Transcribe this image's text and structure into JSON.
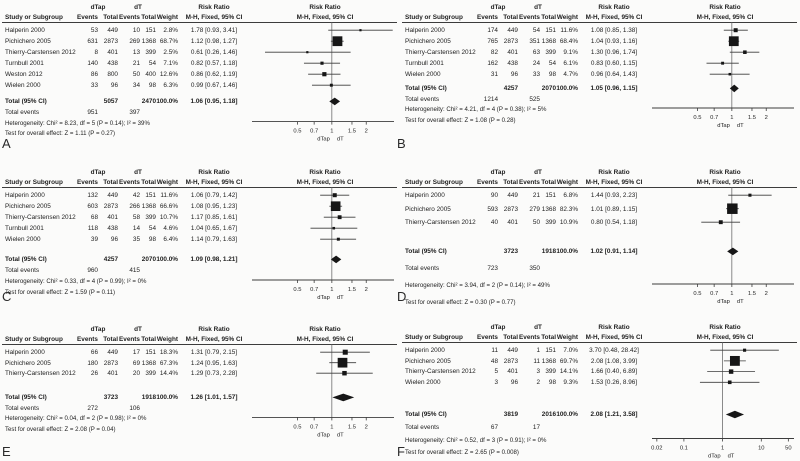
{
  "headers": {
    "group1": "dTap",
    "group2": "dT",
    "risk_ratio": "Risk Ratio",
    "study": "Study or Subgroup",
    "events": "Events",
    "total": "Total",
    "weight": "Weight",
    "mh": "M-H, Fixed, 95% CI",
    "total_label": "Total (95% CI)",
    "total_events_label": "Total events"
  },
  "chart_data": [
    {
      "type": "forest",
      "panel": "A",
      "effect_measure": "Risk Ratio",
      "method": "M-H, Fixed, 95% CI",
      "groups": [
        "dTap",
        "dT"
      ],
      "studies": [
        {
          "name": "Halperin  2000",
          "events1": 53,
          "total1": 449,
          "events2": 10,
          "total2": 151,
          "weight": "2.8%",
          "weight_pct": 2.8,
          "rr": 1.78,
          "lo": 0.93,
          "hi": 3.41,
          "ci": "1.78 [0.93, 3.41]"
        },
        {
          "name": "Pichichero 2005",
          "events1": 631,
          "total1": 2873,
          "events2": 269,
          "total2": 1368,
          "weight": "68.7%",
          "weight_pct": 68.7,
          "rr": 1.12,
          "lo": 0.98,
          "hi": 1.27,
          "ci": "1.12 [0.98, 1.27]"
        },
        {
          "name": "Thierry-Carstensen 2012",
          "events1": 8,
          "total1": 401,
          "events2": 13,
          "total2": 399,
          "weight": "2.5%",
          "weight_pct": 2.5,
          "rr": 0.61,
          "lo": 0.26,
          "hi": 1.46,
          "ci": "0.61 [0.26, 1.46]"
        },
        {
          "name": "Turnbull 2001",
          "events1": 140,
          "total1": 438,
          "events2": 21,
          "total2": 54,
          "weight": "7.1%",
          "weight_pct": 7.1,
          "rr": 0.82,
          "lo": 0.57,
          "hi": 1.18,
          "ci": "0.82 [0.57, 1.18]"
        },
        {
          "name": "Weston 2012",
          "events1": 86,
          "total1": 800,
          "events2": 50,
          "total2": 400,
          "weight": "12.6%",
          "weight_pct": 12.6,
          "rr": 0.86,
          "lo": 0.62,
          "hi": 1.19,
          "ci": "0.86 [0.62, 1.19]"
        },
        {
          "name": "Wielen 2000",
          "events1": 33,
          "total1": 96,
          "events2": 34,
          "total2": 98,
          "weight": "6.3%",
          "weight_pct": 6.3,
          "rr": 0.99,
          "lo": 0.67,
          "hi": 1.46,
          "ci": "0.99 [0.67, 1.46]"
        }
      ],
      "total": {
        "total1": 5057,
        "total2": 2470,
        "weight": "100.0%",
        "rr": 1.06,
        "lo": 0.95,
        "hi": 1.18,
        "ci": "1.06 [0.95, 1.18]"
      },
      "total_events": {
        "events1": 951,
        "events2": 397
      },
      "heterogeneity": "Heterogeneity: Chi² = 8.23, df = 5 (P = 0.14); I² = 39%",
      "overall_effect": "Test for overall effect: Z = 1.11 (P = 0.27)",
      "axis": {
        "scale": "log",
        "min": 0.2,
        "max": 3.5,
        "ticks": [
          0.5,
          0.7,
          1,
          1.5,
          2
        ],
        "tick_labels": [
          "0.5",
          "0.7",
          "1",
          "1.5",
          "2"
        ]
      }
    },
    {
      "type": "forest",
      "panel": "B",
      "effect_measure": "Risk Ratio",
      "method": "M-H, Fixed, 95% CI",
      "groups": [
        "dTap",
        "dT"
      ],
      "studies": [
        {
          "name": "Halperin  2000",
          "events1": 174,
          "total1": 449,
          "events2": 54,
          "total2": 151,
          "weight": "11.6%",
          "weight_pct": 11.6,
          "rr": 1.08,
          "lo": 0.85,
          "hi": 1.38,
          "ci": "1.08 [0.85, 1.38]"
        },
        {
          "name": "Pichichero 2005",
          "events1": 765,
          "total1": 2873,
          "events2": 351,
          "total2": 1368,
          "weight": "68.4%",
          "weight_pct": 68.4,
          "rr": 1.04,
          "lo": 0.93,
          "hi": 1.16,
          "ci": "1.04 [0.93, 1.16]"
        },
        {
          "name": "Thierry-Carstensen 2012",
          "events1": 82,
          "total1": 401,
          "events2": 63,
          "total2": 399,
          "weight": "9.1%",
          "weight_pct": 9.1,
          "rr": 1.3,
          "lo": 0.96,
          "hi": 1.74,
          "ci": "1.30 [0.96, 1.74]"
        },
        {
          "name": "Turnbull 2001",
          "events1": 162,
          "total1": 438,
          "events2": 24,
          "total2": 54,
          "weight": "6.1%",
          "weight_pct": 6.1,
          "rr": 0.83,
          "lo": 0.6,
          "hi": 1.15,
          "ci": "0.83 [0.60, 1.15]"
        },
        {
          "name": "Wielen 2000",
          "events1": 31,
          "total1": 96,
          "events2": 33,
          "total2": 98,
          "weight": "4.7%",
          "weight_pct": 4.7,
          "rr": 0.96,
          "lo": 0.64,
          "hi": 1.43,
          "ci": "0.96 [0.64, 1.43]"
        }
      ],
      "total": {
        "total1": 4257,
        "total2": 2070,
        "weight": "100.0%",
        "rr": 1.05,
        "lo": 0.96,
        "hi": 1.15,
        "ci": "1.05 [0.96, 1.15]"
      },
      "total_events": {
        "events1": 1214,
        "events2": 525
      },
      "heterogeneity": "Heterogeneity: Chi² = 4.21, df = 4 (P = 0.38); I² = 5%",
      "overall_effect": "Test for overall effect: Z = 1.08 (P = 0.28)",
      "axis": {
        "scale": "log",
        "min": 0.2,
        "max": 3.5,
        "ticks": [
          0.5,
          0.7,
          1,
          1.5,
          2
        ],
        "tick_labels": [
          "0.5",
          "0.7",
          "1",
          "1.5",
          "2"
        ]
      }
    },
    {
      "type": "forest",
      "panel": "C",
      "effect_measure": "Risk Ratio",
      "method": "M-H, Fixed, 95% CI",
      "groups": [
        "dTap",
        "dT"
      ],
      "studies": [
        {
          "name": "Halperin  2000",
          "events1": 132,
          "total1": 449,
          "events2": 42,
          "total2": 151,
          "weight": "11.6%",
          "weight_pct": 11.6,
          "rr": 1.06,
          "lo": 0.79,
          "hi": 1.42,
          "ci": "1.06 [0.79, 1.42]"
        },
        {
          "name": "Pichichero 2005",
          "events1": 603,
          "total1": 2873,
          "events2": 266,
          "total2": 1368,
          "weight": "66.6%",
          "weight_pct": 66.6,
          "rr": 1.08,
          "lo": 0.95,
          "hi": 1.23,
          "ci": "1.08 [0.95, 1.23]"
        },
        {
          "name": "Thierry-Carstensen 2012",
          "events1": 68,
          "total1": 401,
          "events2": 58,
          "total2": 399,
          "weight": "10.7%",
          "weight_pct": 10.7,
          "rr": 1.17,
          "lo": 0.85,
          "hi": 1.61,
          "ci": "1.17 [0.85, 1.61]"
        },
        {
          "name": "Turnbull 2001",
          "events1": 118,
          "total1": 438,
          "events2": 14,
          "total2": 54,
          "weight": "4.6%",
          "weight_pct": 4.6,
          "rr": 1.04,
          "lo": 0.65,
          "hi": 1.67,
          "ci": "1.04 [0.65, 1.67]"
        },
        {
          "name": "Wielen 2000",
          "events1": 39,
          "total1": 96,
          "events2": 35,
          "total2": 98,
          "weight": "6.4%",
          "weight_pct": 6.4,
          "rr": 1.14,
          "lo": 0.79,
          "hi": 1.63,
          "ci": "1.14 [0.79, 1.63]"
        }
      ],
      "total": {
        "total1": 4257,
        "total2": 2070,
        "weight": "100.0%",
        "rr": 1.09,
        "lo": 0.98,
        "hi": 1.21,
        "ci": "1.09 [0.98, 1.21]"
      },
      "total_events": {
        "events1": 960,
        "events2": 415
      },
      "heterogeneity": "Heterogeneity: Chi² = 0.33, df = 4 (P = 0.99); I² = 0%",
      "overall_effect": "Test for overall effect: Z = 1.59 (P = 0.11)",
      "axis": {
        "scale": "log",
        "min": 0.2,
        "max": 3.5,
        "ticks": [
          0.5,
          0.7,
          1,
          1.5,
          2
        ],
        "tick_labels": [
          "0.5",
          "0.7",
          "1",
          "1.5",
          "2"
        ]
      }
    },
    {
      "type": "forest",
      "panel": "D",
      "effect_measure": "Risk Ratio",
      "method": "M-H, Fixed, 95% CI",
      "groups": [
        "dTap",
        "dT"
      ],
      "studies": [
        {
          "name": "Halperin  2000",
          "events1": 90,
          "total1": 449,
          "events2": 21,
          "total2": 151,
          "weight": "6.8%",
          "weight_pct": 6.8,
          "rr": 1.44,
          "lo": 0.93,
          "hi": 2.23,
          "ci": "1.44 [0.93, 2.23]"
        },
        {
          "name": "Pichichero 2005",
          "events1": 593,
          "total1": 2873,
          "events2": 279,
          "total2": 1368,
          "weight": "82.3%",
          "weight_pct": 82.3,
          "rr": 1.01,
          "lo": 0.89,
          "hi": 1.15,
          "ci": "1.01 [0.89, 1.15]"
        },
        {
          "name": "Thierry-Carstensen 2012",
          "events1": 40,
          "total1": 401,
          "events2": 50,
          "total2": 399,
          "weight": "10.9%",
          "weight_pct": 10.9,
          "rr": 0.8,
          "lo": 0.54,
          "hi": 1.18,
          "ci": "0.80 [0.54, 1.18]"
        }
      ],
      "total": {
        "total1": 3723,
        "total2": 1918,
        "weight": "100.0%",
        "rr": 1.02,
        "lo": 0.91,
        "hi": 1.14,
        "ci": "1.02 [0.91, 1.14]"
      },
      "total_events": {
        "events1": 723,
        "events2": 350
      },
      "heterogeneity": "Heterogeneity: Chi² = 3.94, df = 2 (P = 0.14); I² = 49%",
      "overall_effect": "Test for overall effect: Z = 0.30 (P = 0.77)",
      "axis": {
        "scale": "log",
        "min": 0.2,
        "max": 3.5,
        "ticks": [
          0.5,
          0.7,
          1,
          1.5,
          2
        ],
        "tick_labels": [
          "0.5",
          "0.7",
          "1",
          "1.5",
          "2"
        ]
      }
    },
    {
      "type": "forest",
      "panel": "E",
      "effect_measure": "Risk Ratio",
      "method": "M-H, Fixed, 95% CI",
      "groups": [
        "dTap",
        "dT"
      ],
      "studies": [
        {
          "name": "Halperin  2000",
          "events1": 66,
          "total1": 449,
          "events2": 17,
          "total2": 151,
          "weight": "18.3%",
          "weight_pct": 18.3,
          "rr": 1.31,
          "lo": 0.79,
          "hi": 2.15,
          "ci": "1.31 [0.79, 2.15]"
        },
        {
          "name": "Pichichero 2005",
          "events1": 180,
          "total1": 2873,
          "events2": 69,
          "total2": 1368,
          "weight": "67.3%",
          "weight_pct": 67.3,
          "rr": 1.24,
          "lo": 0.95,
          "hi": 1.63,
          "ci": "1.24 [0.95, 1.63]"
        },
        {
          "name": "Thierry-Carstensen 2012",
          "events1": 26,
          "total1": 401,
          "events2": 20,
          "total2": 399,
          "weight": "14.4%",
          "weight_pct": 14.4,
          "rr": 1.29,
          "lo": 0.73,
          "hi": 2.28,
          "ci": "1.29 [0.73, 2.28]"
        }
      ],
      "total": {
        "total1": 3723,
        "total2": 1918,
        "weight": "100.0%",
        "rr": 1.26,
        "lo": 1.01,
        "hi": 1.57,
        "ci": "1.26 [1.01, 1.57]"
      },
      "total_events": {
        "events1": 272,
        "events2": 106
      },
      "heterogeneity": "Heterogeneity: Chi² = 0.04, df = 2 (P = 0.98); I² = 0%",
      "overall_effect": "Test for overall effect: Z = 2.08 (P = 0.04)",
      "axis": {
        "scale": "log",
        "min": 0.2,
        "max": 3.5,
        "ticks": [
          0.5,
          0.7,
          1,
          1.5,
          2
        ],
        "tick_labels": [
          "0.5",
          "0.7",
          "1",
          "1.5",
          "2"
        ]
      }
    },
    {
      "type": "forest",
      "panel": "F",
      "effect_measure": "Risk Ratio",
      "method": "M-H, Fixed, 95% CI",
      "groups": [
        "dTap",
        "dT"
      ],
      "studies": [
        {
          "name": "Halperin  2000",
          "events1": 11,
          "total1": 449,
          "events2": 1,
          "total2": 151,
          "weight": "7.0%",
          "weight_pct": 7.0,
          "rr": 3.7,
          "lo": 0.48,
          "hi": 28.42,
          "ci": "3.70 [0.48, 28.42]"
        },
        {
          "name": "Pichichero 2005",
          "events1": 48,
          "total1": 2873,
          "events2": 11,
          "total2": 1368,
          "weight": "69.7%",
          "weight_pct": 69.7,
          "rr": 2.08,
          "lo": 1.08,
          "hi": 3.99,
          "ci": "2.08 [1.08, 3.99]"
        },
        {
          "name": "Thierry-Carstensen 2012",
          "events1": 5,
          "total1": 401,
          "events2": 3,
          "total2": 399,
          "weight": "14.1%",
          "weight_pct": 14.1,
          "rr": 1.66,
          "lo": 0.4,
          "hi": 6.89,
          "ci": "1.66 [0.40, 6.89]"
        },
        {
          "name": "Wielen 2000",
          "events1": 3,
          "total1": 96,
          "events2": 2,
          "total2": 98,
          "weight": "9.3%",
          "weight_pct": 9.3,
          "rr": 1.53,
          "lo": 0.26,
          "hi": 8.96,
          "ci": "1.53 [0.26, 8.96]"
        }
      ],
      "total": {
        "total1": 3819,
        "total2": 2016,
        "weight": "100.0%",
        "rr": 2.08,
        "lo": 1.21,
        "hi": 3.58,
        "ci": "2.08 [1.21, 3.58]"
      },
      "total_events": {
        "events1": 67,
        "events2": 17
      },
      "heterogeneity": "Heterogeneity: Chi² = 0.52, df = 3 (P = 0.91); I² = 0%",
      "overall_effect": "Test for overall effect: Z = 2.65 (P = 0.008)",
      "axis": {
        "scale": "log",
        "min": 0.015,
        "max": 70,
        "ticks": [
          0.02,
          0.1,
          1,
          10,
          50
        ],
        "tick_labels": [
          "0.02",
          "0.1",
          "1",
          "10",
          "50"
        ]
      }
    }
  ],
  "colors": {
    "text": "#1e1e1e",
    "line": "#3c3c3c",
    "marker": "#161616",
    "background": "#fbfbfa"
  }
}
